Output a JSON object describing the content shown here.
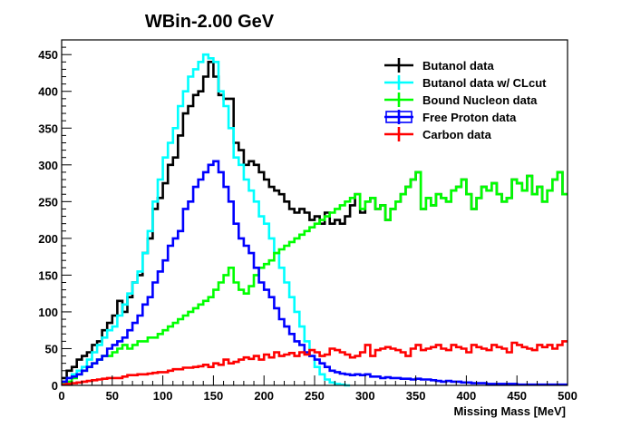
{
  "chart_data": {
    "type": "line",
    "title": "WBin-2.00 GeV",
    "xlabel": "Missing Mass [MeV]",
    "ylabel": "",
    "xlim": [
      0,
      500
    ],
    "ylim": [
      0,
      470
    ],
    "xticks": [
      0,
      50,
      100,
      150,
      200,
      250,
      300,
      350,
      400,
      450,
      500
    ],
    "yticks": [
      0,
      50,
      100,
      150,
      200,
      250,
      300,
      350,
      400,
      450
    ],
    "grid": false,
    "legend_position": "top-right",
    "bin_width": 5,
    "series": [
      {
        "name": "Butanol data",
        "color": "#000000",
        "x": [
          0,
          5,
          10,
          15,
          20,
          25,
          30,
          35,
          40,
          45,
          50,
          55,
          60,
          65,
          70,
          75,
          80,
          85,
          90,
          95,
          100,
          105,
          110,
          115,
          120,
          125,
          130,
          135,
          140,
          145,
          150,
          155,
          160,
          165,
          170,
          175,
          180,
          185,
          190,
          195,
          200,
          205,
          210,
          215,
          220,
          225,
          230,
          235,
          240,
          245,
          250,
          255,
          260,
          265,
          270,
          275,
          280,
          285,
          290,
          295,
          300,
          305,
          310,
          315,
          320,
          325,
          330,
          335,
          340,
          345,
          350,
          355,
          360,
          365,
          370,
          375,
          380,
          385,
          390,
          395,
          400,
          405,
          410,
          415,
          420,
          425,
          430,
          435,
          440,
          445,
          450,
          455,
          460,
          465,
          470,
          475,
          480,
          485,
          490,
          495
        ],
        "values": [
          10,
          20,
          25,
          35,
          40,
          45,
          55,
          60,
          75,
          85,
          95,
          115,
          100,
          120,
          140,
          150,
          180,
          200,
          240,
          255,
          275,
          300,
          310,
          340,
          370,
          380,
          395,
          400,
          420,
          440,
          420,
          395,
          390,
          390,
          330,
          320,
          300,
          305,
          300,
          290,
          280,
          270,
          265,
          260,
          250,
          240,
          235,
          240,
          235,
          225,
          230,
          220,
          235,
          220,
          225,
          220,
          230,
          245,
          260,
          235,
          250,
          255,
          240,
          245,
          225,
          240,
          250,
          260,
          270,
          280,
          290,
          240,
          255,
          245,
          260,
          255,
          250,
          265,
          270,
          280,
          260,
          240,
          255,
          270,
          265,
          275,
          260,
          250,
          255,
          280,
          275,
          265,
          285,
          260,
          270,
          250,
          265,
          280,
          290,
          260
        ]
      },
      {
        "name": "Butanol data w/ CLcut",
        "color": "#00ffff",
        "x": [
          0,
          5,
          10,
          15,
          20,
          25,
          30,
          35,
          40,
          45,
          50,
          55,
          60,
          65,
          70,
          75,
          80,
          85,
          90,
          95,
          100,
          105,
          110,
          115,
          120,
          125,
          130,
          135,
          140,
          145,
          150,
          155,
          160,
          165,
          170,
          175,
          180,
          185,
          190,
          195,
          200,
          205,
          210,
          215,
          220,
          225,
          230,
          235,
          240,
          245,
          250,
          255,
          260,
          265,
          270,
          275,
          280
        ],
        "values": [
          5,
          10,
          15,
          20,
          25,
          35,
          45,
          55,
          65,
          75,
          80,
          95,
          110,
          125,
          140,
          155,
          180,
          210,
          250,
          280,
          310,
          330,
          350,
          380,
          400,
          420,
          430,
          440,
          450,
          445,
          440,
          400,
          380,
          350,
          310,
          300,
          280,
          265,
          250,
          230,
          220,
          200,
          180,
          160,
          140,
          120,
          100,
          80,
          60,
          40,
          25,
          15,
          8,
          4,
          2,
          1,
          0
        ]
      },
      {
        "name": "Bound Nucleon data",
        "color": "#00ff00",
        "x": [
          0,
          5,
          10,
          15,
          20,
          25,
          30,
          35,
          40,
          45,
          50,
          55,
          60,
          65,
          70,
          75,
          80,
          85,
          90,
          95,
          100,
          105,
          110,
          115,
          120,
          125,
          130,
          135,
          140,
          145,
          150,
          155,
          160,
          165,
          170,
          175,
          180,
          185,
          190,
          195,
          200,
          205,
          210,
          215,
          220,
          225,
          230,
          235,
          240,
          245,
          250,
          255,
          260,
          265,
          270,
          275,
          280,
          285,
          290,
          295,
          300,
          305,
          310,
          315,
          320,
          325,
          330,
          335,
          340,
          345,
          350,
          355,
          360,
          365,
          370,
          375,
          380,
          385,
          390,
          395,
          400,
          405,
          410,
          415,
          420,
          425,
          430,
          435,
          440,
          445,
          450,
          455,
          460,
          465,
          470,
          475,
          480,
          485,
          490,
          495
        ],
        "values": [
          2,
          5,
          10,
          15,
          20,
          25,
          30,
          35,
          40,
          40,
          45,
          50,
          55,
          50,
          55,
          60,
          60,
          65,
          65,
          70,
          75,
          80,
          85,
          90,
          95,
          100,
          105,
          110,
          115,
          120,
          130,
          140,
          150,
          160,
          140,
          130,
          125,
          135,
          150,
          160,
          165,
          170,
          180,
          185,
          190,
          195,
          200,
          205,
          210,
          215,
          220,
          225,
          230,
          235,
          240,
          245,
          250,
          255,
          260,
          240,
          250,
          255,
          240,
          245,
          225,
          240,
          250,
          260,
          270,
          280,
          290,
          240,
          255,
          245,
          260,
          255,
          250,
          265,
          270,
          280,
          260,
          240,
          255,
          270,
          265,
          275,
          260,
          250,
          255,
          280,
          275,
          265,
          285,
          260,
          270,
          250,
          265,
          280,
          290,
          260
        ]
      },
      {
        "name": "Free Proton data",
        "color": "#0000ff",
        "x": [
          0,
          5,
          10,
          15,
          20,
          25,
          30,
          35,
          40,
          45,
          50,
          55,
          60,
          65,
          70,
          75,
          80,
          85,
          90,
          95,
          100,
          105,
          110,
          115,
          120,
          125,
          130,
          135,
          140,
          145,
          150,
          155,
          160,
          165,
          170,
          175,
          180,
          185,
          190,
          195,
          200,
          205,
          210,
          215,
          220,
          225,
          230,
          235,
          240,
          245,
          250,
          255,
          260,
          265,
          270,
          275,
          280,
          285,
          290,
          295,
          300,
          305,
          310,
          315,
          320,
          325,
          330,
          335,
          340,
          345,
          350,
          355,
          360,
          365,
          370,
          375,
          380,
          385,
          390,
          395,
          400,
          405,
          410,
          415,
          420,
          425,
          430,
          435,
          440,
          445,
          450,
          455,
          460,
          465,
          470,
          475,
          480,
          485,
          490,
          495
        ],
        "values": [
          5,
          10,
          12,
          15,
          20,
          25,
          30,
          35,
          40,
          50,
          55,
          60,
          65,
          75,
          85,
          95,
          110,
          120,
          140,
          155,
          170,
          190,
          200,
          210,
          240,
          250,
          270,
          280,
          290,
          300,
          305,
          290,
          270,
          250,
          220,
          200,
          190,
          180,
          160,
          140,
          130,
          120,
          105,
          90,
          80,
          70,
          60,
          55,
          45,
          40,
          35,
          30,
          25,
          20,
          18,
          16,
          15,
          14,
          15,
          14,
          15,
          12,
          12,
          10,
          11,
          10,
          10,
          9,
          9,
          8,
          9,
          8,
          8,
          7,
          6,
          5,
          6,
          5,
          5,
          4,
          4,
          3,
          3,
          3,
          2,
          2,
          2,
          2,
          2,
          2,
          1,
          1,
          1,
          1,
          1,
          1,
          1,
          1,
          1,
          1
        ]
      },
      {
        "name": "Carbon data",
        "color": "#ff0000",
        "x": [
          0,
          5,
          10,
          15,
          20,
          25,
          30,
          35,
          40,
          45,
          50,
          55,
          60,
          65,
          70,
          75,
          80,
          85,
          90,
          95,
          100,
          105,
          110,
          115,
          120,
          125,
          130,
          135,
          140,
          145,
          150,
          155,
          160,
          165,
          170,
          175,
          180,
          185,
          190,
          195,
          200,
          205,
          210,
          215,
          220,
          225,
          230,
          235,
          240,
          245,
          250,
          255,
          260,
          265,
          270,
          275,
          280,
          285,
          290,
          295,
          300,
          305,
          310,
          315,
          320,
          325,
          330,
          335,
          340,
          345,
          350,
          355,
          360,
          365,
          370,
          375,
          380,
          385,
          390,
          395,
          400,
          405,
          410,
          415,
          420,
          425,
          430,
          435,
          440,
          445,
          450,
          455,
          460,
          465,
          470,
          475,
          480,
          485,
          490,
          495
        ],
        "values": [
          1,
          2,
          3,
          4,
          5,
          6,
          7,
          8,
          9,
          10,
          10,
          10,
          12,
          14,
          14,
          15,
          15,
          16,
          17,
          18,
          18,
          20,
          22,
          22,
          24,
          24,
          25,
          26,
          28,
          25,
          30,
          28,
          35,
          30,
          32,
          35,
          38,
          36,
          40,
          35,
          42,
          38,
          45,
          40,
          42,
          44,
          40,
          45,
          42,
          48,
          45,
          40,
          42,
          50,
          48,
          45,
          42,
          38,
          40,
          45,
          55,
          40,
          48,
          50,
          52,
          50,
          48,
          45,
          40,
          50,
          55,
          48,
          50,
          52,
          55,
          50,
          48,
          55,
          52,
          50,
          45,
          55,
          52,
          50,
          48,
          55,
          52,
          50,
          45,
          58,
          55,
          52,
          50,
          48,
          55,
          52,
          55,
          50,
          55,
          60
        ]
      }
    ]
  }
}
